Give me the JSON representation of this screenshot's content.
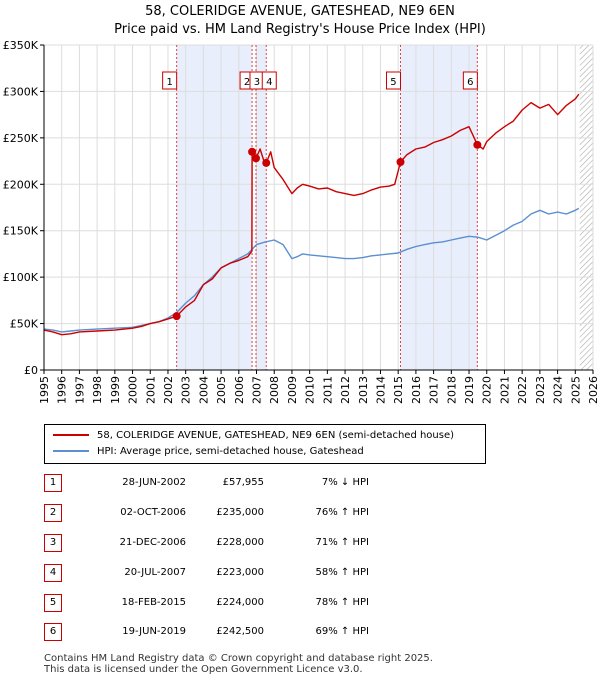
{
  "title_line1": "58, COLERIDGE AVENUE, GATESHEAD, NE9 6EN",
  "title_line2": "Price paid vs. HM Land Registry's House Price Index (HPI)",
  "chart_data": {
    "type": "line",
    "title": "58, COLERIDGE AVENUE, GATESHEAD, NE9 6EN - Price paid vs. HM Land Registry's House Price Index (HPI)",
    "xlim": [
      1995,
      2026
    ],
    "ylim": [
      0,
      350000
    ],
    "y_ticks": [
      0,
      50000,
      100000,
      150000,
      200000,
      250000,
      300000,
      350000
    ],
    "y_tick_labels": [
      "£0",
      "£50K",
      "£100K",
      "£150K",
      "£200K",
      "£250K",
      "£300K",
      "£350K"
    ],
    "x_ticks": [
      1995,
      1996,
      1997,
      1998,
      1999,
      2000,
      2001,
      2002,
      2003,
      2004,
      2005,
      2006,
      2007,
      2008,
      2009,
      2010,
      2011,
      2012,
      2013,
      2014,
      2015,
      2016,
      2017,
      2018,
      2019,
      2020,
      2021,
      2022,
      2023,
      2024,
      2025,
      2026
    ],
    "x_tick_labels": [
      "1995",
      "1996",
      "1997",
      "1998",
      "1999",
      "2000",
      "2001",
      "2002",
      "2003",
      "2004",
      "2005",
      "2006",
      "2007",
      "2008",
      "2009",
      "2010",
      "2011",
      "2012",
      "2013",
      "2014",
      "2015",
      "2016",
      "2017",
      "2018",
      "2019",
      "2020",
      "2021",
      "2022",
      "2023",
      "2024",
      "2025",
      "2026"
    ],
    "shaded_periods": [
      [
        2002.49,
        2006.75
      ],
      [
        2006.97,
        2007.55
      ],
      [
        2015.13,
        2019.47
      ]
    ],
    "forecast_start": 2025.25,
    "series": [
      {
        "name": "58, COLERIDGE AVENUE, GATESHEAD, NE9 6EN (semi-detached house)",
        "color": "#cc0000",
        "x": [
          1995.0,
          1995.5,
          1996.0,
          1996.5,
          1997.0,
          1998.0,
          1999.0,
          2000.0,
          2000.5,
          2001.0,
          2001.5,
          2002.0,
          2002.49,
          2003.0,
          2003.5,
          2004.0,
          2004.5,
          2005.0,
          2005.5,
          2006.0,
          2006.5,
          2006.74,
          2006.75,
          2006.85,
          2006.97,
          2007.2,
          2007.4,
          2007.55,
          2007.8,
          2008.0,
          2008.5,
          2009.0,
          2009.3,
          2009.6,
          2010.0,
          2010.5,
          2011.0,
          2011.5,
          2012.0,
          2012.5,
          2013.0,
          2013.5,
          2014.0,
          2014.5,
          2014.8,
          2015.13,
          2015.5,
          2016.0,
          2016.5,
          2017.0,
          2017.5,
          2018.0,
          2018.5,
          2019.0,
          2019.47,
          2019.8,
          2020.0,
          2020.5,
          2021.0,
          2021.5,
          2022.0,
          2022.5,
          2023.0,
          2023.5,
          2024.0,
          2024.5,
          2025.0,
          2025.2
        ],
        "values": [
          43000,
          41000,
          38000,
          39000,
          41000,
          42000,
          43000,
          45000,
          47000,
          50000,
          52000,
          55000,
          57955,
          68000,
          75000,
          92000,
          98000,
          110000,
          115000,
          118000,
          122000,
          128000,
          235000,
          232000,
          228000,
          238000,
          226000,
          223000,
          235000,
          218000,
          205000,
          190000,
          196000,
          200000,
          198000,
          195000,
          196000,
          192000,
          190000,
          188000,
          190000,
          194000,
          197000,
          198000,
          200000,
          224000,
          232000,
          238000,
          240000,
          245000,
          248000,
          252000,
          258000,
          262000,
          242500,
          238000,
          246000,
          255000,
          262000,
          268000,
          280000,
          288000,
          282000,
          286000,
          275000,
          285000,
          292000,
          297000
        ]
      },
      {
        "name": "HPI: Average price, semi-detached house, Gateshead",
        "color": "#5b8fcf",
        "x": [
          1995.0,
          1995.5,
          1996.0,
          1996.5,
          1997.0,
          1998.0,
          1999.0,
          2000.0,
          2000.5,
          2001.0,
          2001.5,
          2002.0,
          2002.5,
          2003.0,
          2003.5,
          2004.0,
          2004.5,
          2005.0,
          2005.5,
          2006.0,
          2006.5,
          2006.75,
          2007.0,
          2007.5,
          2008.0,
          2008.5,
          2009.0,
          2009.3,
          2009.6,
          2010.0,
          2010.5,
          2011.0,
          2011.5,
          2012.0,
          2012.5,
          2013.0,
          2013.5,
          2014.0,
          2014.5,
          2015.0,
          2015.5,
          2016.0,
          2016.5,
          2017.0,
          2017.5,
          2018.0,
          2018.5,
          2019.0,
          2019.5,
          2020.0,
          2020.5,
          2021.0,
          2021.5,
          2022.0,
          2022.5,
          2023.0,
          2023.5,
          2024.0,
          2024.5,
          2025.0,
          2025.2
        ],
        "values": [
          44000,
          43000,
          41000,
          42000,
          43000,
          44000,
          45000,
          46000,
          48000,
          50000,
          52000,
          56000,
          62000,
          72000,
          80000,
          92000,
          100000,
          110000,
          115000,
          120000,
          125000,
          130000,
          135000,
          138000,
          140000,
          135000,
          120000,
          122000,
          125000,
          124000,
          123000,
          122000,
          121000,
          120000,
          120000,
          121000,
          123000,
          124000,
          125000,
          126000,
          130000,
          133000,
          135000,
          137000,
          138000,
          140000,
          142000,
          144000,
          143000,
          140000,
          145000,
          150000,
          156000,
          160000,
          168000,
          172000,
          168000,
          170000,
          168000,
          172000,
          174000
        ]
      }
    ],
    "sale_markers": [
      {
        "n": "1",
        "x": 2002.49,
        "value": 57955
      },
      {
        "n": "2",
        "x": 2006.75,
        "value": 235000
      },
      {
        "n": "3",
        "x": 2006.97,
        "value": 228000
      },
      {
        "n": "4",
        "x": 2007.55,
        "value": 223000
      },
      {
        "n": "5",
        "x": 2015.13,
        "value": 224000
      },
      {
        "n": "6",
        "x": 2019.47,
        "value": 242500
      }
    ]
  },
  "legend": {
    "red_label": "58, COLERIDGE AVENUE, GATESHEAD, NE9 6EN (semi-detached house)",
    "blue_label": "HPI: Average price, semi-detached house, Gateshead",
    "red_color": "#cc0000",
    "blue_color": "#5b8fcf"
  },
  "sales": [
    {
      "n": "1",
      "date": "28-JUN-2002",
      "price": "£57,955",
      "pct": "7% ↓ HPI"
    },
    {
      "n": "2",
      "date": "02-OCT-2006",
      "price": "£235,000",
      "pct": "76% ↑ HPI"
    },
    {
      "n": "3",
      "date": "21-DEC-2006",
      "price": "£228,000",
      "pct": "71% ↑ HPI"
    },
    {
      "n": "4",
      "date": "20-JUL-2007",
      "price": "£223,000",
      "pct": "58% ↑ HPI"
    },
    {
      "n": "5",
      "date": "18-FEB-2015",
      "price": "£224,000",
      "pct": "78% ↑ HPI"
    },
    {
      "n": "6",
      "date": "19-JUN-2019",
      "price": "£242,500",
      "pct": "69% ↑ HPI"
    }
  ],
  "footer_line1": "Contains HM Land Registry data © Crown copyright and database right 2025.",
  "footer_line2": "This data is licensed under the Open Government Licence v3.0."
}
